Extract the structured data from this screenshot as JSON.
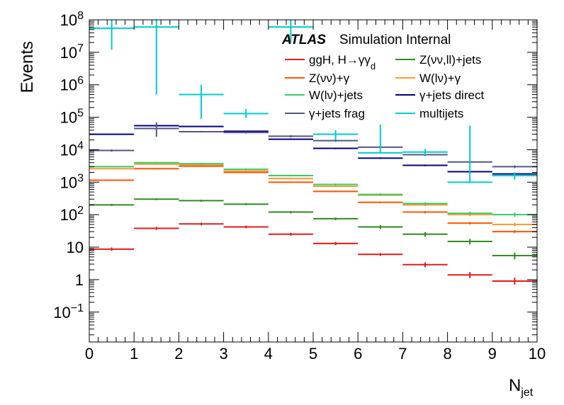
{
  "chart_data": {
    "type": "line",
    "title": "",
    "xlabel": "N",
    "xlabel_sub": "jet",
    "ylabel": "Events",
    "xlim": [
      0,
      10
    ],
    "ylim": [
      0.012,
      100000000
    ],
    "yscale": "log",
    "grid": false,
    "legend_position": "top-right",
    "annotation": {
      "experiment": "ATLAS",
      "text": "Simulation Internal"
    },
    "x_ticks": [
      "0",
      "1",
      "2",
      "3",
      "4",
      "5",
      "6",
      "7",
      "8",
      "9",
      "10"
    ],
    "y_ticks": [
      {
        "value": 0.1,
        "base": "10",
        "exp": "−1",
        "label": ""
      },
      {
        "value": 1,
        "base": "",
        "exp": "",
        "label": "1"
      },
      {
        "value": 10,
        "base": "",
        "exp": "",
        "label": "10"
      },
      {
        "value": 100,
        "base": "10",
        "exp": "2",
        "label": ""
      },
      {
        "value": 1000,
        "base": "10",
        "exp": "3",
        "label": ""
      },
      {
        "value": 10000,
        "base": "10",
        "exp": "4",
        "label": ""
      },
      {
        "value": 100000,
        "base": "10",
        "exp": "5",
        "label": ""
      },
      {
        "value": 1000000,
        "base": "10",
        "exp": "6",
        "label": ""
      },
      {
        "value": 10000000,
        "base": "10",
        "exp": "7",
        "label": ""
      },
      {
        "value": 100000000,
        "base": "10",
        "exp": "8",
        "label": ""
      }
    ],
    "bin_edges": [
      0,
      1,
      2,
      3,
      4,
      5,
      6,
      7,
      8,
      9,
      10
    ],
    "series": [
      {
        "name": "ggH, H→γγ",
        "name_sub": "d",
        "color": "#e41a1c",
        "values": [
          8.7,
          38,
          52,
          42,
          25,
          13,
          6,
          2.9,
          1.4,
          0.9
        ],
        "err_up": [
          9.8,
          42,
          57,
          46,
          27.5,
          14.5,
          6.6,
          3.4,
          1.7,
          1.15
        ],
        "err_dn": [
          7.7,
          34,
          47,
          38,
          22.5,
          11.5,
          5.4,
          2.4,
          1.1,
          0.7
        ]
      },
      {
        "name": "Z(νν,ll)+jets",
        "color": "#2e8b22",
        "values": [
          200,
          300,
          270,
          210,
          120,
          75,
          42,
          25,
          15,
          5.5
        ],
        "err_up": [
          215,
          320,
          290,
          225,
          130,
          82,
          48,
          29,
          18,
          6.8
        ],
        "err_dn": [
          185,
          280,
          250,
          195,
          110,
          68,
          36,
          21,
          12,
          4.2
        ]
      },
      {
        "name": "Z(νν)+γ",
        "color": "#ff5500",
        "values": [
          1150,
          2600,
          3100,
          2000,
          1000,
          520,
          240,
          120,
          55,
          30
        ],
        "err_up": [
          1200,
          2700,
          3200,
          2100,
          1050,
          550,
          255,
          130,
          60,
          33
        ],
        "err_dn": [
          1100,
          2500,
          3000,
          1900,
          950,
          490,
          225,
          110,
          50,
          27
        ]
      },
      {
        "name": "W(lν)+γ",
        "color": "#ff9a30",
        "values": [
          2600,
          3600,
          3400,
          2200,
          1300,
          750,
          400,
          200,
          100,
          50
        ],
        "err_up": [
          2700,
          3750,
          3550,
          2300,
          1370,
          790,
          425,
          215,
          110,
          56
        ],
        "err_dn": [
          2500,
          3450,
          3250,
          2100,
          1230,
          710,
          375,
          185,
          90,
          44
        ]
      },
      {
        "name": "W(lν)+jets",
        "color": "#33cc66",
        "values": [
          3000,
          4000,
          3700,
          2500,
          1600,
          850,
          420,
          220,
          110,
          100
        ],
        "err_up": [
          3150,
          4200,
          3900,
          2650,
          1700,
          910,
          455,
          240,
          122,
          115
        ],
        "err_dn": [
          2850,
          3800,
          3500,
          2350,
          1500,
          790,
          385,
          200,
          98,
          86
        ]
      },
      {
        "name": "γ+jets direct",
        "color": "#000080",
        "values": [
          30000,
          55000,
          52000,
          37000,
          21000,
          11000,
          5500,
          3300,
          2100,
          1800
        ],
        "err_up": [
          31000,
          57000,
          54000,
          38500,
          22000,
          11600,
          5800,
          3500,
          2250,
          1950
        ],
        "err_dn": [
          29000,
          53000,
          50000,
          35500,
          20000,
          10400,
          5200,
          3100,
          1950,
          1650
        ]
      },
      {
        "name": "γ+jets frag",
        "color": "#555588",
        "values": [
          9500,
          45000,
          36000,
          34000,
          26000,
          19000,
          12000,
          7000,
          4200,
          3000
        ],
        "err_up": [
          10300,
          70000,
          38000,
          36500,
          28000,
          20500,
          12800,
          7600,
          4600,
          3300
        ],
        "err_dn": [
          8700,
          25000,
          34000,
          31500,
          24000,
          17500,
          11200,
          6400,
          3800,
          2700
        ]
      },
      {
        "name": "multijets",
        "color": "#00cccc",
        "values": [
          55000000,
          60000000,
          500000,
          130000,
          null,
          30000,
          null,
          8500,
          null,
          1600
        ],
        "err_up": [
          100000000,
          100000000,
          1000000,
          180000,
          null,
          40000,
          null,
          10500,
          null,
          2000
        ],
        "err_dn": [
          12000000,
          500000,
          90000,
          95000,
          null,
          20000,
          null,
          6800,
          null,
          1200
        ]
      },
      {
        "name": "",
        "color": "#00cccc",
        "style": "markers-only",
        "points": [
          {
            "x": 4.5,
            "value": 60000000,
            "err_up": 100000000,
            "err_dn": 20000000
          },
          {
            "x": 6.5,
            "value": 8000,
            "err_up": 60000,
            "err_dn": 0
          },
          {
            "x": 8.5,
            "value": 1000,
            "err_up": 55000,
            "err_dn": 0
          }
        ]
      }
    ]
  }
}
